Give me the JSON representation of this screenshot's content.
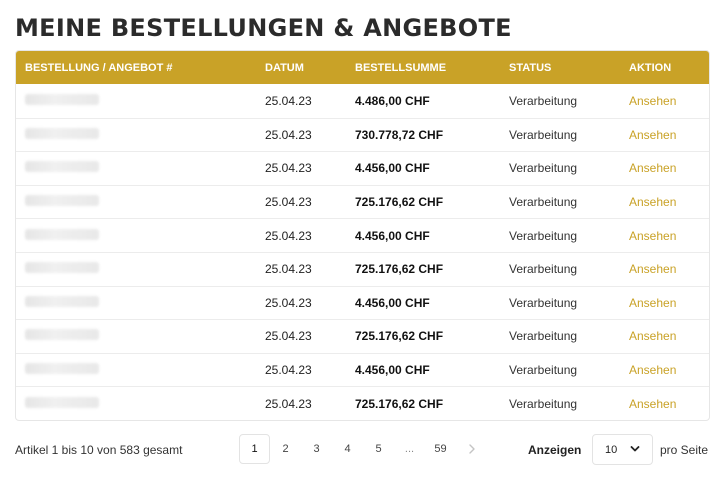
{
  "title": "MEINE BESTELLUNGEN & ANGEBOTE",
  "table": {
    "headers": [
      "BESTELLUNG / ANGEBOT #",
      "DATUM",
      "BESTELLSUMME",
      "STATUS",
      "AKTION"
    ],
    "rows": [
      {
        "date": "25.04.23",
        "total": "4.486,00 CHF",
        "status": "Verarbeitung",
        "action": "Ansehen"
      },
      {
        "date": "25.04.23",
        "total": "730.778,72 CHF",
        "status": "Verarbeitung",
        "action": "Ansehen"
      },
      {
        "date": "25.04.23",
        "total": "4.456,00 CHF",
        "status": "Verarbeitung",
        "action": "Ansehen"
      },
      {
        "date": "25.04.23",
        "total": "725.176,62 CHF",
        "status": "Verarbeitung",
        "action": "Ansehen"
      },
      {
        "date": "25.04.23",
        "total": "4.456,00 CHF",
        "status": "Verarbeitung",
        "action": "Ansehen"
      },
      {
        "date": "25.04.23",
        "total": "725.176,62 CHF",
        "status": "Verarbeitung",
        "action": "Ansehen"
      },
      {
        "date": "25.04.23",
        "total": "4.456,00 CHF",
        "status": "Verarbeitung",
        "action": "Ansehen"
      },
      {
        "date": "25.04.23",
        "total": "725.176,62 CHF",
        "status": "Verarbeitung",
        "action": "Ansehen"
      },
      {
        "date": "25.04.23",
        "total": "4.456,00 CHF",
        "status": "Verarbeitung",
        "action": "Ansehen"
      },
      {
        "date": "25.04.23",
        "total": "725.176,62 CHF",
        "status": "Verarbeitung",
        "action": "Ansehen"
      }
    ]
  },
  "footer": {
    "summary": "Artikel 1 bis 10 von 583 gesamt",
    "pages": [
      "1",
      "2",
      "3",
      "4",
      "5",
      "...",
      "59"
    ],
    "active_page": "1",
    "next_icon": "chevron-right-icon",
    "show_label": "Anzeigen",
    "per_page_value": "10",
    "per_page_label": "pro Seite"
  },
  "colors": {
    "accent": "#c9a227",
    "header_text": "#ffffff"
  }
}
